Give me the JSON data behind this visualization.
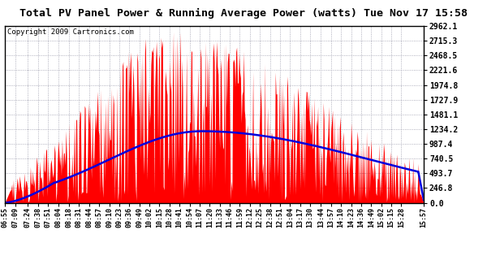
{
  "title": "Total PV Panel Power & Running Average Power (watts) Tue Nov 17 15:58",
  "copyright": "Copyright 2009 Cartronics.com",
  "bg_color": "#ffffff",
  "plot_bg_color": "#ffffff",
  "grid_color": "#9999aa",
  "bar_color": "#ff0000",
  "line_color": "#0000dd",
  "ytick_labels": [
    "0.0",
    "246.8",
    "493.7",
    "740.5",
    "987.4",
    "1234.2",
    "1481.1",
    "1727.9",
    "1974.8",
    "2221.6",
    "2468.5",
    "2715.3",
    "2962.1"
  ],
  "ytick_values": [
    0.0,
    246.8,
    493.7,
    740.5,
    987.4,
    1234.2,
    1481.1,
    1727.9,
    1974.8,
    2221.6,
    2468.5,
    2715.3,
    2962.1
  ],
  "ymax": 2962.1,
  "xtick_labels": [
    "06:55",
    "07:09",
    "07:24",
    "07:38",
    "07:51",
    "08:04",
    "08:18",
    "08:31",
    "08:44",
    "08:57",
    "09:10",
    "09:23",
    "09:36",
    "09:49",
    "10:02",
    "10:15",
    "10:28",
    "10:41",
    "10:54",
    "11:07",
    "11:20",
    "11:33",
    "11:46",
    "11:59",
    "12:12",
    "12:25",
    "12:38",
    "12:51",
    "13:04",
    "13:17",
    "13:30",
    "13:44",
    "13:57",
    "14:10",
    "14:23",
    "14:36",
    "14:49",
    "15:02",
    "15:15",
    "15:28",
    "15:57"
  ]
}
